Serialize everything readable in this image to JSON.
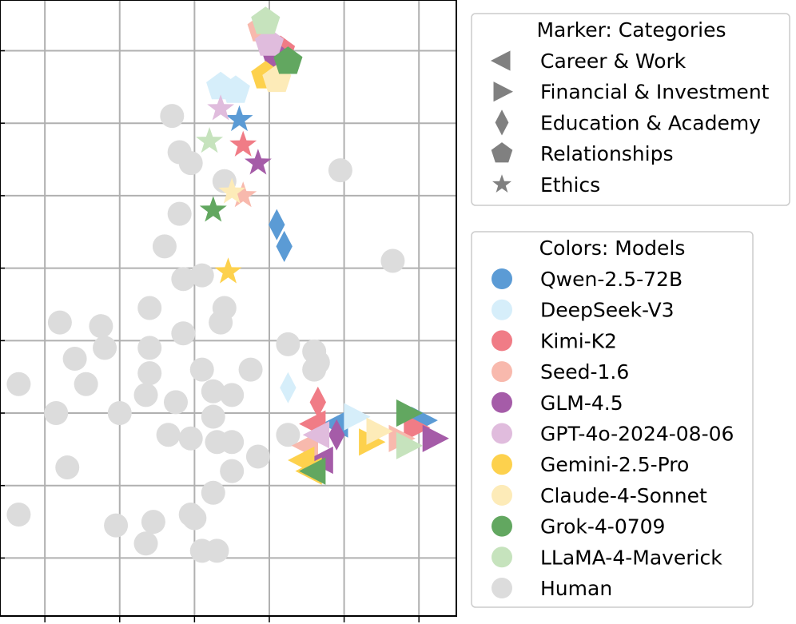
{
  "chart_data": {
    "type": "scatter",
    "title": "",
    "xlabel": "",
    "ylabel": "",
    "xlim": [
      -0.6,
      5.5
    ],
    "ylim": [
      -0.8,
      7.7
    ],
    "grid": true,
    "xticks": [
      0,
      1,
      2,
      3,
      4,
      5
    ],
    "yticks": [
      0,
      1,
      2,
      3,
      4,
      5,
      6,
      7
    ],
    "marker_legend": {
      "title": "Marker: Categories",
      "entries": [
        {
          "label": "Career & Work",
          "marker": "triangle-left"
        },
        {
          "label": "Financial & Investment",
          "marker": "triangle-right"
        },
        {
          "label": "Education & Academy",
          "marker": "diamond"
        },
        {
          "label": "Relationships",
          "marker": "pentagon"
        },
        {
          "label": "Ethics",
          "marker": "star"
        }
      ]
    },
    "color_legend": {
      "title": "Colors: Models",
      "entries": [
        {
          "label": "Qwen-2.5-72B",
          "color": "#5b9bd5"
        },
        {
          "label": "DeepSeek-V3",
          "color": "#d6eefa"
        },
        {
          "label": "Kimi-K2",
          "color": "#f07c86"
        },
        {
          "label": "Seed-1.6",
          "color": "#f8b9ad"
        },
        {
          "label": "GLM-4.5",
          "color": "#a55ca8"
        },
        {
          "label": "GPT-4o-2024-08-06",
          "color": "#e0bcdd"
        },
        {
          "label": "Gemini-2.5-Pro",
          "color": "#fdd14d"
        },
        {
          "label": "Claude-4-Sonnet",
          "color": "#fdebb8"
        },
        {
          "label": "Grok-4-0709",
          "color": "#62a760"
        },
        {
          "label": "LLaMA-4-Maverick",
          "color": "#c6e3bd"
        },
        {
          "label": "Human",
          "color": "#dcdcdc"
        }
      ]
    },
    "human_points": [
      [
        1.7,
        6.1
      ],
      [
        1.8,
        5.6
      ],
      [
        1.95,
        5.45
      ],
      [
        2.4,
        5.2
      ],
      [
        1.8,
        4.75
      ],
      [
        1.6,
        4.3
      ],
      [
        1.85,
        3.85
      ],
      [
        2.1,
        3.9
      ],
      [
        1.4,
        3.45
      ],
      [
        2.4,
        3.45
      ],
      [
        2.35,
        3.25
      ],
      [
        0.2,
        3.25
      ],
      [
        0.75,
        3.2
      ],
      [
        0.8,
        2.9
      ],
      [
        1.4,
        2.9
      ],
      [
        1.85,
        3.1
      ],
      [
        0.4,
        2.75
      ],
      [
        0.55,
        2.4
      ],
      [
        1.4,
        2.55
      ],
      [
        2.1,
        2.6
      ],
      [
        2.75,
        2.6
      ],
      [
        -0.35,
        2.4
      ],
      [
        1.35,
        2.25
      ],
      [
        2.25,
        2.3
      ],
      [
        2.5,
        2.25
      ],
      [
        0.15,
        2.0
      ],
      [
        1.0,
        2.0
      ],
      [
        1.75,
        2.15
      ],
      [
        2.25,
        1.95
      ],
      [
        1.65,
        1.7
      ],
      [
        1.95,
        1.65
      ],
      [
        2.3,
        1.6
      ],
      [
        2.5,
        1.6
      ],
      [
        2.85,
        1.4
      ],
      [
        0.3,
        1.25
      ],
      [
        2.5,
        1.2
      ],
      [
        2.25,
        0.9
      ],
      [
        -0.35,
        0.6
      ],
      [
        0.95,
        0.45
      ],
      [
        1.45,
        0.5
      ],
      [
        1.95,
        0.6
      ],
      [
        2.0,
        0.55
      ],
      [
        1.35,
        0.2
      ],
      [
        2.1,
        0.1
      ],
      [
        2.3,
        0.1
      ],
      [
        3.95,
        5.35
      ],
      [
        4.65,
        4.1
      ],
      [
        3.25,
        2.95
      ],
      [
        3.6,
        2.85
      ],
      [
        3.65,
        2.7
      ],
      [
        3.6,
        2.6
      ],
      [
        3.25,
        1.7
      ]
    ],
    "model_points": [
      {
        "model": "Qwen-2.5-72B",
        "category": "Ethics",
        "x": 2.6,
        "y": 6.05
      },
      {
        "model": "Qwen-2.5-72B",
        "category": "Education & Academy",
        "x": 3.1,
        "y": 4.6
      },
      {
        "model": "Qwen-2.5-72B",
        "category": "Education & Academy",
        "x": 3.2,
        "y": 4.3
      },
      {
        "model": "Qwen-2.5-72B",
        "category": "Financial & Investment",
        "x": 5.05,
        "y": 1.9
      },
      {
        "model": "Qwen-2.5-72B",
        "category": "Career & Work",
        "x": 3.9,
        "y": 1.85
      },
      {
        "model": "DeepSeek-V3",
        "category": "Relationships",
        "x": 2.35,
        "y": 6.5
      },
      {
        "model": "DeepSeek-V3",
        "category": "Relationships",
        "x": 2.55,
        "y": 6.45
      },
      {
        "model": "DeepSeek-V3",
        "category": "Education & Academy",
        "x": 3.25,
        "y": 2.35
      },
      {
        "model": "DeepSeek-V3",
        "category": "Financial & Investment",
        "x": 4.15,
        "y": 1.95
      },
      {
        "model": "Kimi-K2",
        "category": "Relationships",
        "x": 3.15,
        "y": 7.0
      },
      {
        "model": "Kimi-K2",
        "category": "Ethics",
        "x": 2.65,
        "y": 5.7
      },
      {
        "model": "Kimi-K2",
        "category": "Education & Academy",
        "x": 3.65,
        "y": 2.15
      },
      {
        "model": "Kimi-K2",
        "category": "Career & Work",
        "x": 3.6,
        "y": 1.85
      },
      {
        "model": "Kimi-K2",
        "category": "Financial & Investment",
        "x": 4.95,
        "y": 1.8
      },
      {
        "model": "Seed-1.6",
        "category": "Relationships",
        "x": 2.9,
        "y": 7.3
      },
      {
        "model": "Seed-1.6",
        "category": "Ethics",
        "x": 2.65,
        "y": 5.0
      },
      {
        "model": "Seed-1.6",
        "category": "Career & Work",
        "x": 3.5,
        "y": 1.55
      },
      {
        "model": "Seed-1.6",
        "category": "Financial & Investment",
        "x": 4.75,
        "y": 1.65
      },
      {
        "model": "GLM-4.5",
        "category": "Relationships",
        "x": 3.1,
        "y": 6.9
      },
      {
        "model": "GLM-4.5",
        "category": "Ethics",
        "x": 2.85,
        "y": 5.45
      },
      {
        "model": "GLM-4.5",
        "category": "Education & Academy",
        "x": 3.9,
        "y": 1.7
      },
      {
        "model": "GLM-4.5",
        "category": "Career & Work",
        "x": 3.7,
        "y": 1.35
      },
      {
        "model": "GLM-4.5",
        "category": "Financial & Investment",
        "x": 5.2,
        "y": 1.65
      },
      {
        "model": "GPT-4o-2024-08-06",
        "category": "Relationships",
        "x": 3.0,
        "y": 7.1
      },
      {
        "model": "GPT-4o-2024-08-06",
        "category": "Ethics",
        "x": 2.35,
        "y": 6.2
      },
      {
        "model": "GPT-4o-2024-08-06",
        "category": "Career & Work",
        "x": 3.65,
        "y": 1.7
      },
      {
        "model": "Gemini-2.5-Pro",
        "category": "Relationships",
        "x": 2.95,
        "y": 6.65
      },
      {
        "model": "Gemini-2.5-Pro",
        "category": "Ethics",
        "x": 2.45,
        "y": 3.95
      },
      {
        "model": "Gemini-2.5-Pro",
        "category": "Career & Work",
        "x": 3.45,
        "y": 1.35
      },
      {
        "model": "Gemini-2.5-Pro",
        "category": "Career & Work",
        "x": 3.55,
        "y": 1.2
      },
      {
        "model": "Gemini-2.5-Pro",
        "category": "Financial & Investment",
        "x": 4.35,
        "y": 1.6
      },
      {
        "model": "Claude-4-Sonnet",
        "category": "Relationships",
        "x": 3.1,
        "y": 6.6
      },
      {
        "model": "Claude-4-Sonnet",
        "category": "Ethics",
        "x": 2.5,
        "y": 5.05
      },
      {
        "model": "Claude-4-Sonnet",
        "category": "Financial & Investment",
        "x": 4.45,
        "y": 1.75
      },
      {
        "model": "Grok-4-0709",
        "category": "Relationships",
        "x": 3.25,
        "y": 6.85
      },
      {
        "model": "Grok-4-0709",
        "category": "Ethics",
        "x": 2.25,
        "y": 4.8
      },
      {
        "model": "Grok-4-0709",
        "category": "Career & Work",
        "x": 3.6,
        "y": 1.2
      },
      {
        "model": "Grok-4-0709",
        "category": "Financial & Investment",
        "x": 4.85,
        "y": 2.0
      },
      {
        "model": "LLaMA-4-Maverick",
        "category": "Relationships",
        "x": 2.95,
        "y": 7.4
      },
      {
        "model": "LLaMA-4-Maverick",
        "category": "Ethics",
        "x": 2.2,
        "y": 5.75
      },
      {
        "model": "LLaMA-4-Maverick",
        "category": "Financial & Investment",
        "x": 4.85,
        "y": 1.55
      }
    ]
  }
}
